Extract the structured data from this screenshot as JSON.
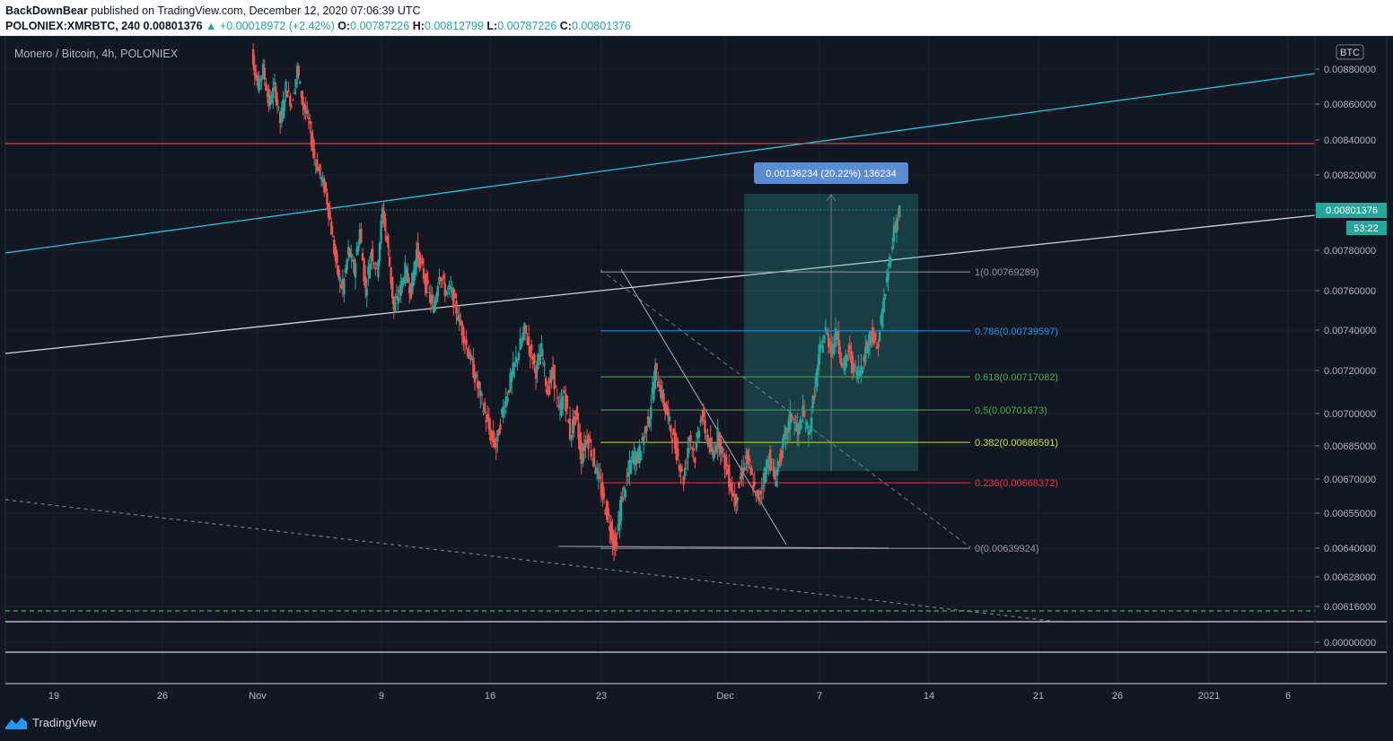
{
  "header": {
    "publisher": "BackDownBear",
    "published_text": "published on TradingView.com, December 12, 2020 07:06:39 UTC",
    "symbol": "POLONIEX:XMRBTC, 240",
    "last": "0.00801376",
    "change": "▲ +0.00018972 (+2.42%)",
    "o_label": "O:",
    "o_value": "0.00787226",
    "h_label": "H:",
    "h_value": "0.00812799",
    "l_label": "L:",
    "l_value": "0.00787226",
    "c_label": "C:",
    "c_value": "0.00801376"
  },
  "legend_title": "Monero / Bitcoin, 4h, POLONIEX",
  "footer": {
    "brand": "TradingView"
  },
  "chart_data": {
    "type": "candlestick",
    "currency_label": "BTC",
    "y_ticks": [
      "0.00880000",
      "0.00860000",
      "0.00840000",
      "0.00820000",
      "0.00800000",
      "0.00780000",
      "0.00760000",
      "0.00740000",
      "0.00720000",
      "0.00700000",
      "0.00685000",
      "0.00670000",
      "0.00655000",
      "0.00640000",
      "0.00628000",
      "0.00616000",
      "0.00000000"
    ],
    "x_ticks": [
      "19",
      "26",
      "Nov",
      "9",
      "16",
      "23",
      "Dec",
      "7",
      "14",
      "21",
      "26",
      "2021",
      "6"
    ],
    "last_price_label": "0.00801376",
    "countdown_label": "53:22",
    "fib_levels": [
      {
        "label": "1(0.00769289)",
        "value": 0.00769289,
        "color": "#9598a1"
      },
      {
        "label": "0.786(0.00739597)",
        "value": 0.00739597,
        "color": "#2196f3"
      },
      {
        "label": "0.618(0.00717082)",
        "value": 0.00717082,
        "color": "#4caf50"
      },
      {
        "label": "0.5(0.00701673)",
        "value": 0.00701673,
        "color": "#4caf50"
      },
      {
        "label": "0.382(0.00686591)",
        "value": 0.00686591,
        "color": "#cddc39"
      },
      {
        "label": "0.236(0.00668372)",
        "value": 0.00668372,
        "color": "#f23645"
      },
      {
        "label": "0(0.00639924)",
        "value": 0.00639924,
        "color": "#9598a1"
      }
    ],
    "measure_label": "0.00136234 (20.22%) 136234",
    "close_series": [
      0.0092,
      0.0089,
      0.0087,
      0.0088,
      0.0086,
      0.0087,
      0.0085,
      0.0087,
      0.0086,
      0.0088,
      0.0086,
      0.0085,
      0.0083,
      0.0082,
      0.0081,
      0.0079,
      0.0077,
      0.0076,
      0.0078,
      0.0077,
      0.0079,
      0.0076,
      0.0078,
      0.0077,
      0.008,
      0.0078,
      0.0075,
      0.0076,
      0.0077,
      0.0076,
      0.0078,
      0.0077,
      0.0076,
      0.0075,
      0.0077,
      0.0076,
      0.0076,
      0.0075,
      0.0074,
      0.0073,
      0.0072,
      0.0071,
      0.007,
      0.0069,
      0.00685,
      0.007,
      0.0071,
      0.0072,
      0.0073,
      0.0074,
      0.0073,
      0.0072,
      0.0073,
      0.0071,
      0.0072,
      0.007,
      0.0071,
      0.0069,
      0.007,
      0.0068,
      0.0069,
      0.0068,
      0.0067,
      0.0066,
      0.0065,
      0.0064,
      0.0066,
      0.0067,
      0.0068,
      0.0068,
      0.0069,
      0.007,
      0.0072,
      0.0071,
      0.007,
      0.0069,
      0.0068,
      0.0067,
      0.0069,
      0.0068,
      0.007,
      0.0069,
      0.0068,
      0.0069,
      0.0068,
      0.0067,
      0.0066,
      0.0067,
      0.0068,
      0.0067,
      0.0066,
      0.0067,
      0.0068,
      0.0067,
      0.0068,
      0.0069,
      0.007,
      0.0069,
      0.007,
      0.0069,
      0.0071,
      0.0073,
      0.0074,
      0.0073,
      0.0074,
      0.0072,
      0.0073,
      0.0072,
      0.0072,
      0.0073,
      0.0074,
      0.0073,
      0.0075,
      0.0077,
      0.0079,
      0.008
    ]
  }
}
